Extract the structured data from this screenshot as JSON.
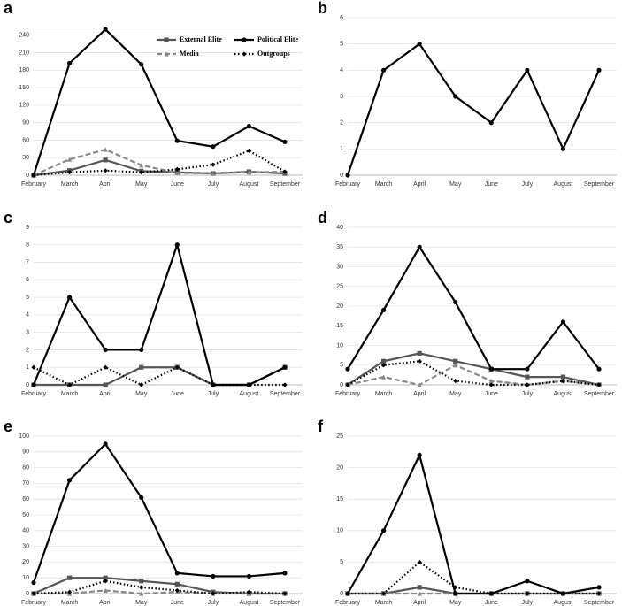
{
  "chart_data": [
    {
      "type": "line",
      "label": "a",
      "categories": [
        "February",
        "March",
        "April",
        "May",
        "June",
        "July",
        "August",
        "September"
      ],
      "ylim": [
        0,
        270
      ],
      "yticks": [
        0,
        30,
        60,
        90,
        120,
        150,
        180,
        210,
        240
      ],
      "grid": true,
      "legend": "top-right",
      "series": [
        {
          "name": "External Elite",
          "color": "#555555",
          "dash": "solid",
          "marker": "square",
          "values": [
            0,
            8,
            26,
            7,
            5,
            3,
            6,
            3
          ]
        },
        {
          "name": "Political Elite",
          "color": "#000000",
          "dash": "solid",
          "marker": "circle",
          "values": [
            0,
            192,
            250,
            190,
            59,
            49,
            84,
            57
          ]
        },
        {
          "name": "Media",
          "color": "#888888",
          "dash": "dashed",
          "marker": "triangle",
          "values": [
            0,
            27,
            44,
            17,
            4,
            3,
            5,
            6
          ]
        },
        {
          "name": "Outgroups",
          "color": "#000000",
          "dash": "dotted",
          "marker": "diamond",
          "values": [
            0,
            5,
            8,
            5,
            10,
            18,
            42,
            6
          ]
        }
      ]
    },
    {
      "type": "line",
      "label": "b",
      "categories": [
        "February",
        "March",
        "April",
        "May",
        "June",
        "July",
        "August",
        "September"
      ],
      "ylim": [
        0,
        6
      ],
      "yticks": [
        0,
        1,
        2,
        3,
        4,
        5,
        6
      ],
      "grid": true,
      "series": [
        {
          "color": "#000000",
          "dash": "solid",
          "marker": "circle",
          "values": [
            0,
            4,
            5,
            3,
            2,
            4,
            1,
            4
          ]
        }
      ]
    },
    {
      "type": "line",
      "label": "c",
      "categories": [
        "February",
        "March",
        "April",
        "May",
        "June",
        "July",
        "August",
        "September"
      ],
      "ylim": [
        0,
        9
      ],
      "yticks": [
        0,
        1,
        2,
        3,
        4,
        5,
        6,
        7,
        8,
        9
      ],
      "grid": true,
      "series": [
        {
          "color": "#555555",
          "dash": "solid",
          "marker": "square",
          "values": [
            0,
            0,
            0,
            1,
            1,
            0,
            0,
            1
          ]
        },
        {
          "color": "#000000",
          "dash": "solid",
          "marker": "circle",
          "values": [
            0,
            5,
            2,
            2,
            8,
            0,
            0,
            1
          ]
        },
        {
          "color": "#000000",
          "dash": "dotted",
          "marker": "diamond",
          "values": [
            1,
            0,
            1,
            0,
            1,
            0,
            0,
            0
          ]
        }
      ]
    },
    {
      "type": "line",
      "label": "d",
      "categories": [
        "February",
        "March",
        "April",
        "May",
        "June",
        "July",
        "August",
        "September"
      ],
      "ylim": [
        0,
        40
      ],
      "yticks": [
        0,
        5,
        10,
        15,
        20,
        25,
        30,
        35,
        40
      ],
      "grid": true,
      "series": [
        {
          "color": "#555555",
          "dash": "solid",
          "marker": "square",
          "values": [
            0,
            6,
            8,
            6,
            4,
            2,
            2,
            0
          ]
        },
        {
          "color": "#000000",
          "dash": "solid",
          "marker": "circle",
          "values": [
            4,
            19,
            35,
            21,
            4,
            4,
            16,
            4
          ]
        },
        {
          "color": "#888888",
          "dash": "dashed",
          "marker": "triangle",
          "values": [
            0,
            2,
            0,
            5,
            1,
            0,
            1,
            0
          ]
        },
        {
          "color": "#000000",
          "dash": "dotted",
          "marker": "diamond",
          "values": [
            0,
            5,
            6,
            1,
            0,
            0,
            1,
            0
          ]
        }
      ]
    },
    {
      "type": "line",
      "label": "e",
      "categories": [
        "February",
        "March",
        "April",
        "May",
        "June",
        "July",
        "August",
        "September"
      ],
      "ylim": [
        0,
        100
      ],
      "yticks": [
        0,
        10,
        20,
        30,
        40,
        50,
        60,
        70,
        80,
        90,
        100
      ],
      "grid": true,
      "series": [
        {
          "color": "#555555",
          "dash": "solid",
          "marker": "square",
          "values": [
            0,
            10,
            10,
            8,
            6,
            1,
            0,
            0
          ]
        },
        {
          "color": "#000000",
          "dash": "solid",
          "marker": "circle",
          "values": [
            7,
            72,
            95,
            61,
            13,
            11,
            11,
            13
          ]
        },
        {
          "color": "#888888",
          "dash": "dashed",
          "marker": "triangle",
          "values": [
            0,
            0,
            2,
            0,
            1,
            0,
            0,
            0
          ]
        },
        {
          "color": "#000000",
          "dash": "dotted",
          "marker": "diamond",
          "values": [
            0,
            1,
            8,
            4,
            2,
            0,
            1,
            0
          ]
        }
      ]
    },
    {
      "type": "line",
      "label": "f",
      "categories": [
        "February",
        "March",
        "April",
        "May",
        "June",
        "July",
        "August",
        "September"
      ],
      "ylim": [
        0,
        25
      ],
      "yticks": [
        0,
        5,
        10,
        15,
        20,
        25
      ],
      "grid": true,
      "series": [
        {
          "color": "#555555",
          "dash": "solid",
          "marker": "square",
          "values": [
            0,
            0,
            1,
            0,
            0,
            0,
            0,
            0
          ]
        },
        {
          "color": "#000000",
          "dash": "solid",
          "marker": "circle",
          "values": [
            0,
            10,
            22,
            0,
            0,
            2,
            0,
            1
          ]
        },
        {
          "color": "#888888",
          "dash": "dashed",
          "marker": "triangle",
          "values": [
            0,
            0,
            0,
            0,
            0,
            0,
            0,
            0
          ]
        },
        {
          "color": "#000000",
          "dash": "dotted",
          "marker": "diamond",
          "values": [
            0,
            0,
            5,
            1,
            0,
            0,
            0,
            0
          ]
        }
      ]
    }
  ]
}
